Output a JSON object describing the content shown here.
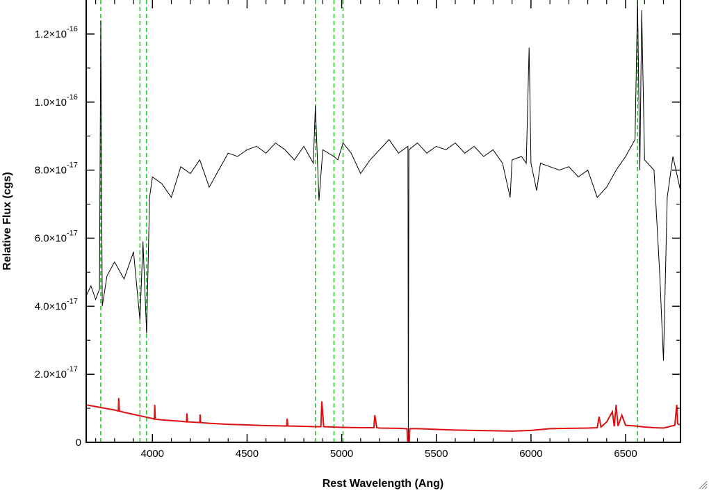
{
  "chart_data": {
    "type": "line",
    "title": "",
    "xlabel": "Rest Wavelength (Ang)",
    "ylabel": "Relative Flux (cgs)",
    "xlim": [
      3650,
      6790
    ],
    "ylim": [
      0,
      1.3e-16
    ],
    "x_ticks": [
      {
        "value": 4000,
        "label": "4000"
      },
      {
        "value": 4500,
        "label": "4500"
      },
      {
        "value": 5000,
        "label": "5000"
      },
      {
        "value": 5500,
        "label": "5500"
      },
      {
        "value": 6000,
        "label": "6000"
      },
      {
        "value": 6500,
        "label": "6500"
      }
    ],
    "y_ticks": [
      {
        "value": 0,
        "mantissa": "0",
        "exponent": ""
      },
      {
        "value": 2e-17,
        "mantissa": "2.0×10",
        "exponent": "-17"
      },
      {
        "value": 4e-17,
        "mantissa": "4.0×10",
        "exponent": "-17"
      },
      {
        "value": 6e-17,
        "mantissa": "6.0×10",
        "exponent": "-17"
      },
      {
        "value": 8e-17,
        "mantissa": "8.0×10",
        "exponent": "-17"
      },
      {
        "value": 1e-16,
        "mantissa": "1.0×10",
        "exponent": "-16"
      },
      {
        "value": 1.2e-16,
        "mantissa": "1.2×10",
        "exponent": "-16"
      }
    ],
    "reference_lines": {
      "color": "#22cc22",
      "style": "dashed",
      "x": [
        3727,
        3934,
        3969,
        4861,
        4959,
        5007,
        6563
      ]
    },
    "series": [
      {
        "color": "#000000",
        "x": [
          3650,
          3675,
          3700,
          3720,
          3727,
          3735,
          3760,
          3800,
          3850,
          3900,
          3934,
          3950,
          3969,
          3985,
          4000,
          4050,
          4100,
          4150,
          4200,
          4250,
          4300,
          4350,
          4400,
          4450,
          4500,
          4550,
          4600,
          4650,
          4700,
          4750,
          4800,
          4850,
          4861,
          4880,
          4900,
          4959,
          4980,
          5007,
          5050,
          5100,
          5150,
          5200,
          5250,
          5300,
          5350,
          5352,
          5355,
          5400,
          5450,
          5500,
          5550,
          5600,
          5650,
          5700,
          5750,
          5800,
          5850,
          5890,
          5900,
          5950,
          5975,
          5990,
          6000,
          6030,
          6050,
          6100,
          6150,
          6200,
          6250,
          6300,
          6350,
          6400,
          6450,
          6500,
          6550,
          6563,
          6575,
          6585,
          6600,
          6650,
          6680,
          6700,
          6720,
          6750,
          6790
        ],
        "y": [
          4.3e-17,
          4.6e-17,
          4.2e-17,
          4.5e-17,
          1.24e-16,
          4e-17,
          4.9e-17,
          5.3e-17,
          4.8e-17,
          5.6e-17,
          3.6e-17,
          5.9e-17,
          3.2e-17,
          7.2e-17,
          7.8e-17,
          7.6e-17,
          7.2e-17,
          8.1e-17,
          7.9e-17,
          8.3e-17,
          7.5e-17,
          8e-17,
          8.5e-17,
          8.4e-17,
          8.6e-17,
          8.7e-17,
          8.5e-17,
          8.8e-17,
          8.6e-17,
          8.3e-17,
          8.7e-17,
          8.2e-17,
          9.9e-17,
          7.1e-17,
          8.6e-17,
          8.4e-17,
          8.3e-17,
          8.8e-17,
          8.5e-17,
          7.9e-17,
          8.3e-17,
          8.6e-17,
          8.9e-17,
          8.5e-17,
          8.7e-17,
          0,
          8.6e-17,
          8.8e-17,
          8.5e-17,
          8.7e-17,
          8.6e-17,
          8.8e-17,
          8.5e-17,
          8.7e-17,
          8.4e-17,
          8.6e-17,
          8.2e-17,
          7.2e-17,
          8.3e-17,
          8.4e-17,
          8.2e-17,
          1.16e-16,
          8.2e-17,
          7.4e-17,
          8.2e-17,
          8.1e-17,
          8e-17,
          8.1e-17,
          7.8e-17,
          8e-17,
          7.2e-17,
          7.5e-17,
          8e-17,
          8.4e-17,
          8.9e-17,
          1.3e-16,
          8e-17,
          1.27e-16,
          8.3e-17,
          8e-17,
          5e-17,
          2.4e-17,
          7.2e-17,
          8.4e-17,
          7.4e-17
        ]
      },
      {
        "color": "#dd1111",
        "x": [
          3650,
          3700,
          3750,
          3800,
          3820,
          3822,
          3825,
          3850,
          3900,
          3950,
          4000,
          4010,
          4012,
          4015,
          4050,
          4100,
          4150,
          4180,
          4182,
          4185,
          4250,
          4252,
          4255,
          4300,
          4400,
          4500,
          4600,
          4700,
          4710,
          4712,
          4715,
          4800,
          4861,
          4890,
          4895,
          4905,
          4950,
          5000,
          5100,
          5170,
          5175,
          5185,
          5200,
          5300,
          5345,
          5350,
          5355,
          5360,
          5400,
          5450,
          5500,
          5600,
          5700,
          5800,
          5900,
          6000,
          6100,
          6200,
          6300,
          6350,
          6360,
          6370,
          6400,
          6430,
          6440,
          6450,
          6460,
          6480,
          6500,
          6550,
          6600,
          6650,
          6700,
          6760,
          6770,
          6775,
          6790
        ],
        "y": [
          1.1e-17,
          1.05e-17,
          1e-17,
          9.5e-18,
          9.2e-18,
          1.3e-17,
          9.2e-18,
          8.8e-18,
          8.2e-18,
          7.6e-18,
          7e-18,
          6.8e-18,
          1.1e-17,
          6.8e-18,
          6.6e-18,
          6.4e-18,
          6.2e-18,
          6e-18,
          8.5e-18,
          6e-18,
          5.8e-18,
          8.2e-18,
          5.8e-18,
          5.6e-18,
          5.3e-18,
          5.1e-18,
          4.9e-18,
          4.8e-18,
          4.8e-18,
          7e-18,
          4.8e-18,
          4.7e-18,
          4.6e-18,
          4.6e-18,
          1.2e-17,
          4.6e-18,
          4.5e-18,
          4.4e-18,
          4.3e-18,
          4.3e-18,
          8e-18,
          4.3e-18,
          4.2e-18,
          4.1e-18,
          4e-18,
          -1.5e-18,
          -2e-18,
          4e-18,
          4e-18,
          3.9e-18,
          3.8e-18,
          3.6e-18,
          3.5e-18,
          3.4e-18,
          3.3e-18,
          3.5e-18,
          4e-18,
          4.1e-18,
          4.2e-18,
          4.3e-18,
          7.5e-18,
          4.5e-18,
          6e-18,
          9e-18,
          4.7e-18,
          1.1e-17,
          4.8e-18,
          8e-18,
          5e-18,
          4.8e-18,
          4.5e-18,
          4.3e-18,
          4.2e-18,
          5e-18,
          1.1e-17,
          5.5e-18,
          5e-18
        ]
      }
    ]
  }
}
